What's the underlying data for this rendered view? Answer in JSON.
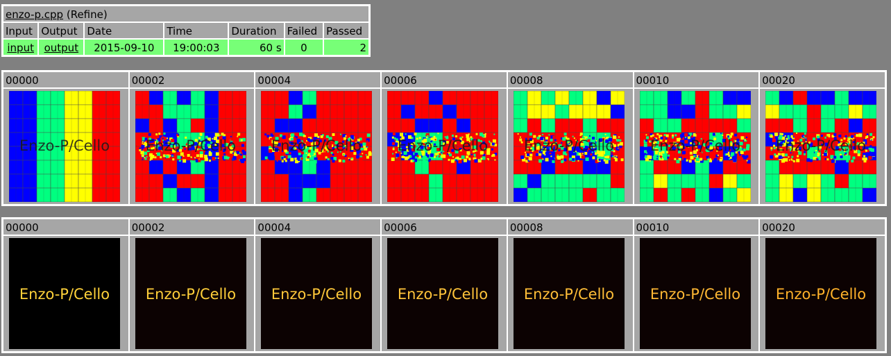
{
  "summary": {
    "file_link": "enzo-p.cpp",
    "file_suffix": "(Refine)",
    "headers": [
      "Input",
      "Output",
      "Date",
      "Time",
      "Duration",
      "Failed",
      "Passed"
    ],
    "input_link": "input",
    "output_link": "output",
    "date": "2015-09-10",
    "time": "19:00:03",
    "duration": "60 s",
    "failed": "0",
    "passed": "2",
    "status_color": "#77ff77"
  },
  "grids": [
    {
      "kind": "mesh",
      "frames": [
        {
          "cycle": "00000",
          "logo": "Enzo-P/Cello"
        },
        {
          "cycle": "00002",
          "logo": "Enzo-P/Cello"
        },
        {
          "cycle": "00004",
          "logo": "Enzo-P/Cello"
        },
        {
          "cycle": "00006",
          "logo": "Enzo-P/Cello"
        },
        {
          "cycle": "00008",
          "logo": "Enzo-P/Cello"
        },
        {
          "cycle": "00010",
          "logo": "Enzo-P/Cello"
        },
        {
          "cycle": "00020",
          "logo": "Enzo-P/Cello"
        }
      ]
    },
    {
      "kind": "density",
      "frames": [
        {
          "cycle": "00000",
          "logo": "Enzo-P/Cello"
        },
        {
          "cycle": "00002",
          "logo": "Enzo-P/Cello"
        },
        {
          "cycle": "00004",
          "logo": "Enzo-P/Cello"
        },
        {
          "cycle": "00006",
          "logo": "Enzo-P/Cello"
        },
        {
          "cycle": "00008",
          "logo": "Enzo-P/Cello"
        },
        {
          "cycle": "00010",
          "logo": "Enzo-P/Cello"
        },
        {
          "cycle": "00020",
          "logo": "Enzo-P/Cello"
        }
      ]
    }
  ],
  "colors": {
    "level_0": "#0000ff",
    "level_1": "#00ff80",
    "level_2": "#ffff00",
    "level_3": "#ff0000",
    "density_background": "#0c0202",
    "logo_text": "#ffb22a"
  }
}
